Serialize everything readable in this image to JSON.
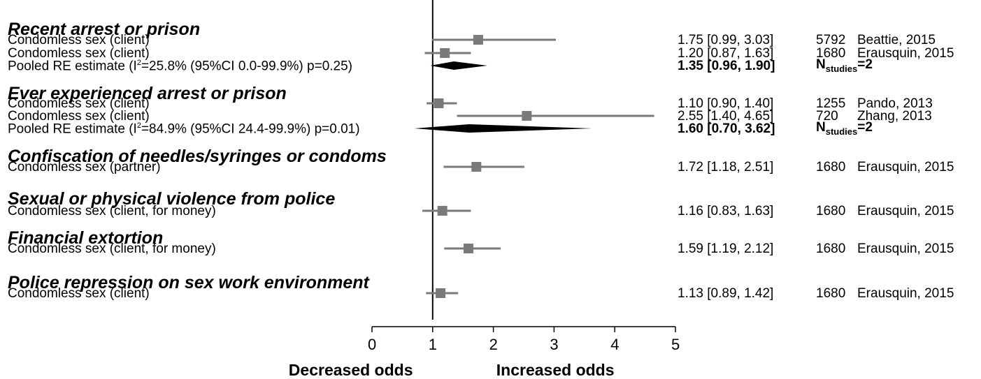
{
  "chart_data": {
    "type": "forest",
    "xlim": [
      0,
      5
    ],
    "null_line": 1,
    "x_ticks": [
      "0",
      "1",
      "2",
      "3",
      "4",
      "5"
    ],
    "x_tick_values": [
      0,
      1,
      2,
      3,
      4,
      5
    ],
    "axis_words": {
      "left": "Decreased odds",
      "right": "Increased odds"
    },
    "groups": [
      {
        "heading": "Recent arrest or prison",
        "rows": [
          {
            "label": "Condomless sex (client)",
            "est": 1.75,
            "lo": 0.99,
            "hi": 3.03,
            "ci_text": "1.75 [0.99, 3.03]",
            "n": "5792",
            "study": "Beattie, 2015"
          },
          {
            "label": "Condomless sex (client)",
            "est": 1.2,
            "lo": 0.87,
            "hi": 1.63,
            "ci_text": "1.20 [0.87, 1.63]",
            "n": "1680",
            "study": "Erausquin, 2015"
          }
        ],
        "pooled": {
          "label_pre": "Pooled RE estimate (I",
          "label_sup": "2",
          "label_post": "=25.8% (95%CI 0.0-99.9%) p=0.25)",
          "est": 1.35,
          "lo": 0.96,
          "hi": 1.9,
          "ci_text": "1.35 [0.96, 1.90]",
          "n_pre": "N",
          "n_sub": "studies",
          "n_post": "=2"
        }
      },
      {
        "heading": "Ever experienced arrest or prison",
        "rows": [
          {
            "label": "Condomless sex (client)",
            "est": 1.1,
            "lo": 0.9,
            "hi": 1.4,
            "ci_text": "1.10 [0.90, 1.40]",
            "n": "1255",
            "study": "Pando, 2013"
          },
          {
            "label": "Condomless sex (client)",
            "est": 2.55,
            "lo": 1.4,
            "hi": 4.65,
            "ci_text": "2.55 [1.40, 4.65]",
            "n": "720",
            "study": "Zhang, 2013"
          }
        ],
        "pooled": {
          "label_pre": "Pooled RE estimate (I",
          "label_sup": "2",
          "label_post": "=84.9% (95%CI 24.4-99.9%) p=0.01)",
          "est": 1.6,
          "lo": 0.7,
          "hi": 3.62,
          "ci_text": "1.60 [0.70, 3.62]",
          "n_pre": "N",
          "n_sub": "studies",
          "n_post": "=2"
        }
      },
      {
        "heading": "Confiscation of needles/syringes or condoms",
        "rows": [
          {
            "label": "Condomless sex (partner)",
            "est": 1.72,
            "lo": 1.18,
            "hi": 2.51,
            "ci_text": "1.72 [1.18, 2.51]",
            "n": "1680",
            "study": "Erausquin, 2015"
          }
        ]
      },
      {
        "heading": "Sexual or physical violence from police",
        "rows": [
          {
            "label": "Condomless sex (client, for money)",
            "est": 1.16,
            "lo": 0.83,
            "hi": 1.63,
            "ci_text": "1.16 [0.83, 1.63]",
            "n": "1680",
            "study": "Erausquin, 2015"
          }
        ]
      },
      {
        "heading": "Financial extortion",
        "rows": [
          {
            "label": "Condomless sex (client, for money)",
            "est": 1.59,
            "lo": 1.19,
            "hi": 2.12,
            "ci_text": "1.59 [1.19, 2.12]",
            "n": "1680",
            "study": "Erausquin, 2015"
          }
        ]
      },
      {
        "heading": "Police repression on sex work environment",
        "rows": [
          {
            "label": "Condomless sex (client)",
            "est": 1.13,
            "lo": 0.89,
            "hi": 1.42,
            "ci_text": "1.13 [0.89, 1.42]",
            "n": "1680",
            "study": "Erausquin, 2015"
          }
        ]
      }
    ]
  },
  "colors": {
    "marker": "#7a7a7a",
    "ci_line": "#7a7a7a",
    "pooled": "#000000",
    "axis": "#000000"
  }
}
